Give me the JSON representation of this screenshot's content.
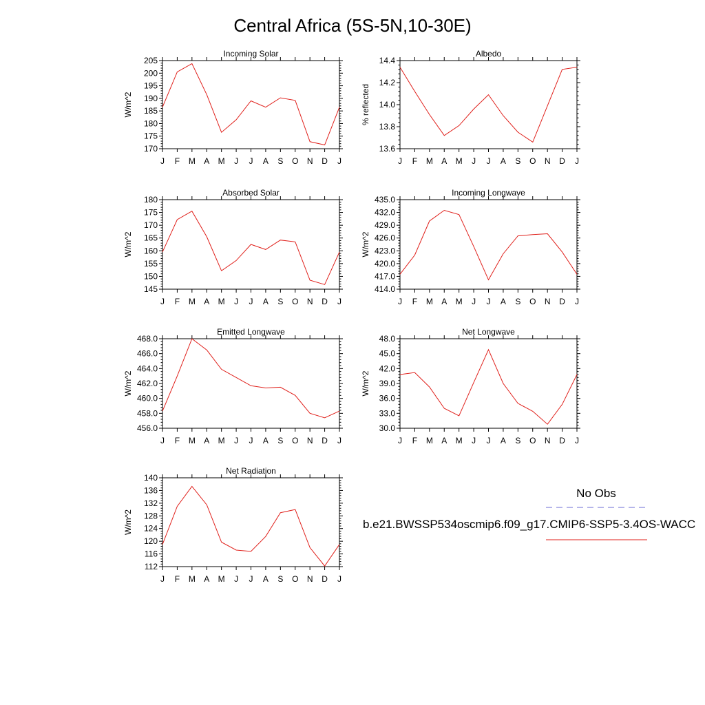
{
  "page": {
    "title": "Central Africa (5S-5N,10-30E)"
  },
  "colors": {
    "model_line": "#e0201b",
    "obs_line": "#6b6bd6",
    "axis": "#000000"
  },
  "months": [
    "J",
    "F",
    "M",
    "A",
    "M",
    "J",
    "J",
    "A",
    "S",
    "O",
    "N",
    "D",
    "J"
  ],
  "legend": {
    "obs_label": "No Obs",
    "model_label": "b.e21.BWSSP534oscmip6.f09_g17.CMIP6-SSP5-3.4OS-WACC"
  },
  "chart_data": [
    {
      "type": "line",
      "title": "Incoming Solar",
      "ylabel": "W/m^2",
      "ylim": [
        170,
        205
      ],
      "yticks": [
        170,
        175,
        180,
        185,
        190,
        195,
        200,
        205
      ],
      "ytick_labels": [
        "170",
        "175",
        "180",
        "185",
        "190",
        "195",
        "200",
        "205"
      ],
      "series": [
        {
          "values": [
            186.5,
            200.5,
            203.8,
            191.5,
            176.5,
            181.5,
            189.0,
            186.5,
            190.2,
            189.2,
            172.8,
            171.5,
            186.5
          ]
        }
      ]
    },
    {
      "type": "line",
      "title": "Albedo",
      "ylabel": "% reflected",
      "ylim": [
        13.6,
        14.4
      ],
      "yticks": [
        13.6,
        13.8,
        14.0,
        14.2,
        14.4
      ],
      "ytick_labels": [
        "13.6",
        "13.8",
        "14.0",
        "14.2",
        "14.4"
      ],
      "series": [
        {
          "values": [
            14.34,
            14.12,
            13.91,
            13.72,
            13.81,
            13.96,
            14.09,
            13.9,
            13.75,
            13.66,
            13.99,
            14.32,
            14.34
          ]
        }
      ]
    },
    {
      "type": "line",
      "title": "Absorbed Solar",
      "ylabel": "W/m^2",
      "ylim": [
        145,
        180
      ],
      "yticks": [
        145,
        150,
        155,
        160,
        165,
        170,
        175,
        180
      ],
      "ytick_labels": [
        "145",
        "150",
        "155",
        "160",
        "165",
        "170",
        "175",
        "180"
      ],
      "series": [
        {
          "values": [
            159.5,
            172.2,
            175.5,
            165.5,
            152.2,
            156.2,
            162.5,
            160.5,
            164.2,
            163.5,
            148.5,
            146.8,
            159.5
          ]
        }
      ]
    },
    {
      "type": "line",
      "title": "Incoming Longwave",
      "ylabel": "W/m^2",
      "ylim": [
        414.0,
        435.0
      ],
      "yticks": [
        414,
        417,
        420,
        423,
        426,
        429,
        432,
        435
      ],
      "ytick_labels": [
        "414.0",
        "417.0",
        "420.0",
        "423.0",
        "426.0",
        "429.0",
        "432.0",
        "435.0"
      ],
      "series": [
        {
          "values": [
            417.5,
            422.0,
            430.0,
            432.5,
            431.5,
            424.0,
            416.2,
            422.3,
            426.5,
            426.8,
            427.0,
            422.7,
            417.5
          ]
        }
      ]
    },
    {
      "type": "line",
      "title": "Emitted Longwave",
      "ylabel": "W/m^2",
      "ylim": [
        456.0,
        468.0
      ],
      "yticks": [
        456,
        458,
        460,
        462,
        464,
        466,
        468
      ],
      "ytick_labels": [
        "456.0",
        "458.0",
        "460.0",
        "462.0",
        "464.0",
        "466.0",
        "468.0"
      ],
      "series": [
        {
          "values": [
            458.3,
            463.0,
            468.0,
            466.5,
            463.9,
            462.8,
            461.7,
            461.4,
            461.5,
            460.4,
            458.0,
            457.4,
            458.3
          ]
        }
      ]
    },
    {
      "type": "line",
      "title": "Net Longwave",
      "ylabel": "W/m^2",
      "ylim": [
        30.0,
        48.0
      ],
      "yticks": [
        30,
        33,
        36,
        39,
        42,
        45,
        48
      ],
      "ytick_labels": [
        "30.0",
        "33.0",
        "36.0",
        "39.0",
        "42.0",
        "45.0",
        "48.0"
      ],
      "series": [
        {
          "values": [
            40.8,
            41.2,
            38.3,
            34.0,
            32.5,
            39.2,
            45.8,
            39.0,
            35.0,
            33.4,
            30.8,
            34.8,
            40.8
          ]
        }
      ]
    },
    {
      "type": "line",
      "title": "Net Radiation",
      "ylabel": "W/m^2",
      "ylim": [
        112,
        140
      ],
      "yticks": [
        112,
        116,
        120,
        124,
        128,
        132,
        136,
        140
      ],
      "ytick_labels": [
        "112",
        "116",
        "120",
        "124",
        "128",
        "132",
        "136",
        "140"
      ],
      "series": [
        {
          "values": [
            119.0,
            131.0,
            137.3,
            131.5,
            119.7,
            117.2,
            116.8,
            121.5,
            129.0,
            130.0,
            118.0,
            112.2,
            119.0
          ]
        }
      ]
    }
  ]
}
